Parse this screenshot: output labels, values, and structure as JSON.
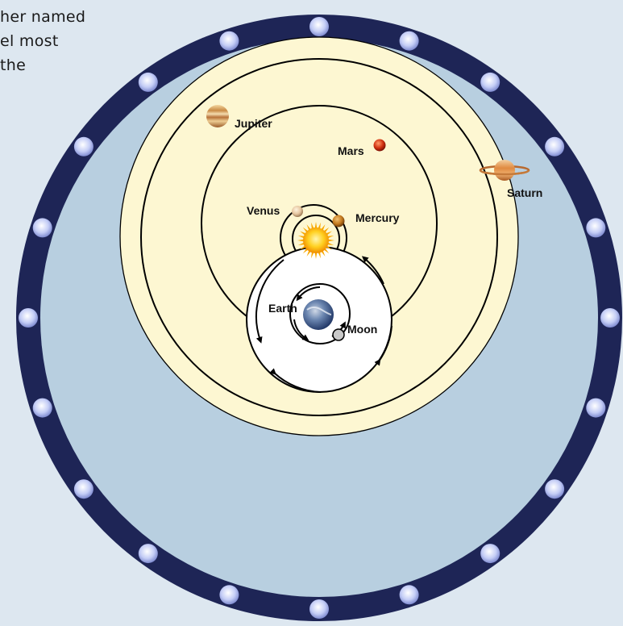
{
  "caption_lines": [
    "her named",
    "el most",
    "the"
  ],
  "labels": {
    "jupiter": "Jupiter",
    "mars": "Mars",
    "saturn": "Saturn",
    "venus": "Venus",
    "mercury": "Mercury",
    "earth": "Earth",
    "moon": "Moon"
  },
  "colors": {
    "background": "#dde7f0",
    "outer_ring": "#1e2556",
    "inner_sky": "#b8cfe0",
    "planet_zone": "#fdf7d2",
    "orbit_line": "#000000",
    "star_dot": "#c6cff2"
  },
  "icons": [
    "sun-icon",
    "earth-icon",
    "moon-icon",
    "jupiter-icon",
    "mars-icon",
    "saturn-icon",
    "venus-icon",
    "mercury-icon",
    "star-dot-icon"
  ]
}
